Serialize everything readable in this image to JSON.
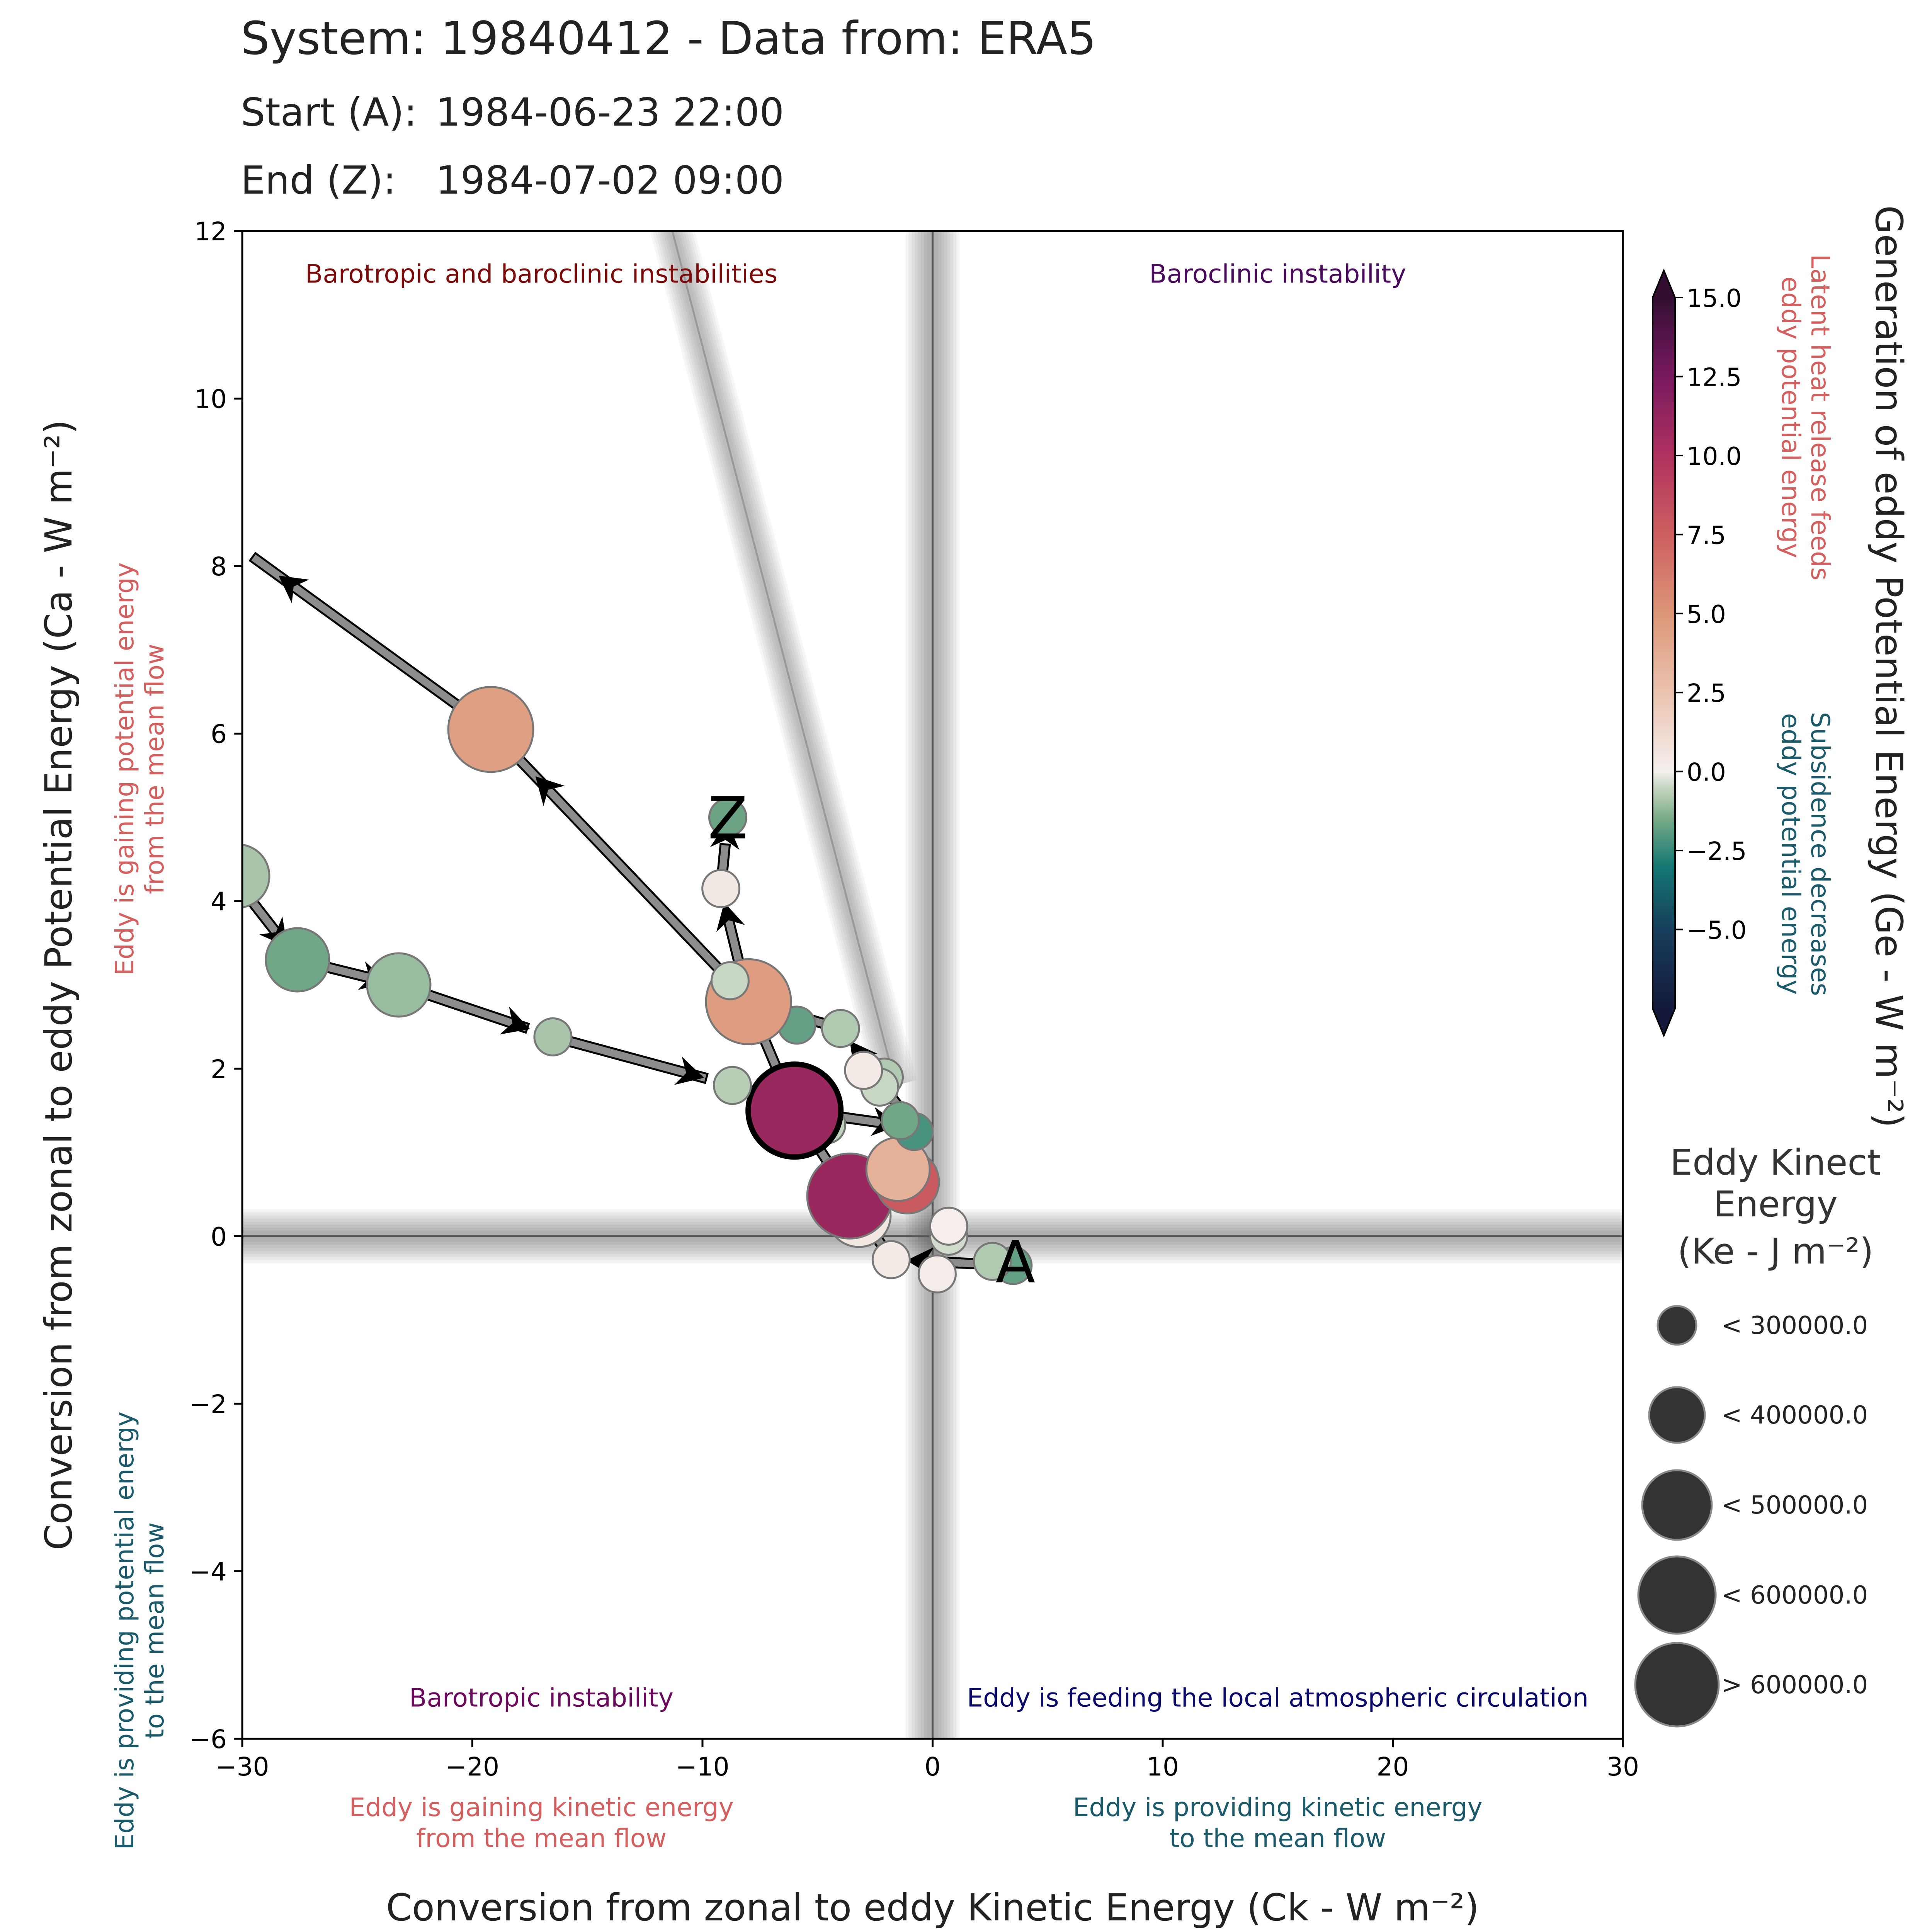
{
  "header": {
    "system_line": "System: 19840412 - Data from: ERA5",
    "start_label": "Start (A):",
    "start_value": "1984-06-23 22:00",
    "end_label": "End (Z):",
    "end_value": "1984-07-02 09:00"
  },
  "chart_data": {
    "type": "scatter",
    "xlabel": "Conversion from zonal to eddy Kinetic Energy (Ck -  W m⁻²)",
    "ylabel": "Conversion from zonal to eddy Potential Energy (Ca -  W m⁻²)",
    "xlim": [
      -30,
      30
    ],
    "ylim": [
      -6,
      12
    ],
    "xticks": [
      "−30",
      "−20",
      "−10",
      "0",
      "10",
      "20",
      "30"
    ],
    "xtick_values": [
      -30,
      -20,
      -10,
      0,
      10,
      20,
      30
    ],
    "yticks": [
      "−6",
      "−4",
      "−2",
      "0",
      "2",
      "4",
      "6",
      "8",
      "10",
      "12"
    ],
    "ytick_values": [
      -6,
      -4,
      -2,
      0,
      2,
      4,
      6,
      8,
      10,
      12
    ],
    "quadrant_labels": [
      {
        "text": "Barotropic and baroclinic instabilities",
        "x": -17,
        "y": 11.5,
        "color": "#7a0a0a"
      },
      {
        "text": "Baroclinic instability",
        "x": 15,
        "y": 11.5,
        "color": "#4a0a5c"
      },
      {
        "text": "Barotropic instability",
        "x": -17,
        "y": -5.5,
        "color": "#6b0a5c"
      },
      {
        "text": "Eddy is feeding the local atmospheric circulation",
        "x": 15,
        "y": -5.5,
        "color": "#0a0a6b"
      }
    ],
    "axis_side_labels": {
      "y_top": [
        "Eddy is gaining potential energy",
        "from the mean flow"
      ],
      "y_bottom": [
        "Eddy is providing potential energy",
        "to the mean flow"
      ],
      "x_left": [
        "Eddy is gaining kinetic energy",
        "from the mean flow"
      ],
      "x_right": [
        "Eddy is providing kinetic energy",
        "to the mean flow"
      ]
    },
    "colors": {
      "gain": "#d45f5f",
      "provide": "#1a5a6b",
      "axis": "#000000",
      "arrow_fill": "#8c8c8c"
    },
    "colorbar": {
      "label": "Generation of eddy Potential Energy (Ge -  W m⁻²)",
      "min": -7.5,
      "max": 15,
      "ticks": [
        "−5.0",
        "−2.5",
        "0.0",
        "2.5",
        "5.0",
        "7.5",
        "10.0",
        "12.5",
        "15.0"
      ],
      "tick_values": [
        -5,
        -2.5,
        0,
        2.5,
        5,
        7.5,
        10,
        12.5,
        15
      ],
      "upper_note": [
        "Latent heat release feeds",
        "eddy potential energy"
      ],
      "lower_note": [
        "Subsidence decreases",
        "eddy potential energy"
      ]
    },
    "size_legend": {
      "title": [
        "Eddy Kinect",
        "Energy",
        "(Ke -  J m⁻²)"
      ],
      "entries": [
        "< 300000.0",
        "< 400000.0",
        "< 500000.0",
        "< 600000.0",
        "> 600000.0"
      ]
    },
    "start_marker": "A",
    "end_marker": "Z",
    "points": [
      {
        "x": 3.5,
        "y": -0.35,
        "ge": -1.8,
        "size": 1
      },
      {
        "x": 2.6,
        "y": -0.3,
        "ge": -0.8,
        "size": 1
      },
      {
        "x": 0.2,
        "y": -0.45,
        "ge": 0.2,
        "size": 1
      },
      {
        "x": -1.8,
        "y": -0.28,
        "ge": 0.3,
        "size": 1
      },
      {
        "x": 0.7,
        "y": 0.0,
        "ge": -0.4,
        "size": 1
      },
      {
        "x": 0.7,
        "y": 0.12,
        "ge": 0.1,
        "size": 1
      },
      {
        "x": -3.2,
        "y": 0.25,
        "ge": 0.5,
        "size": 2
      },
      {
        "x": -3.6,
        "y": 0.48,
        "ge": 11.0,
        "size": 3
      },
      {
        "x": -1.1,
        "y": 0.65,
        "ge": 7.8,
        "size": 2
      },
      {
        "x": -1.5,
        "y": 0.8,
        "ge": 3.5,
        "size": 2
      },
      {
        "x": -0.8,
        "y": 1.25,
        "ge": -2.2,
        "size": 1
      },
      {
        "x": -1.4,
        "y": 1.38,
        "ge": -1.6,
        "size": 1
      },
      {
        "x": -4.6,
        "y": 1.33,
        "ge": -0.6,
        "size": 1
      },
      {
        "x": -6.0,
        "y": 1.5,
        "ge": 11.0,
        "size": 4,
        "highlight": true
      },
      {
        "x": -2.1,
        "y": 1.9,
        "ge": -0.8,
        "size": 1
      },
      {
        "x": -2.3,
        "y": 1.78,
        "ge": -0.5,
        "size": 1
      },
      {
        "x": -3.0,
        "y": 1.98,
        "ge": 0.3,
        "size": 1
      },
      {
        "x": -4.0,
        "y": 2.48,
        "ge": -0.8,
        "size": 1
      },
      {
        "x": -5.9,
        "y": 2.52,
        "ge": -1.8,
        "size": 1
      },
      {
        "x": -8.0,
        "y": 2.8,
        "ge": 4.6,
        "size": 3
      },
      {
        "x": -8.8,
        "y": 3.05,
        "ge": -0.5,
        "size": 1
      },
      {
        "x": -19.2,
        "y": 6.05,
        "ge": 4.5,
        "size": 3
      },
      {
        "x": -9.2,
        "y": 4.15,
        "ge": 0.4,
        "size": 1
      },
      {
        "x": -8.9,
        "y": 5.0,
        "ge": -1.7,
        "size": 1
      },
      {
        "x": -8.7,
        "y": 1.8,
        "ge": -0.7,
        "size": 1
      },
      {
        "x": -16.5,
        "y": 2.38,
        "ge": -0.9,
        "size": 1
      },
      {
        "x": -23.2,
        "y": 3.0,
        "ge": -1.1,
        "size": 2
      },
      {
        "x": -27.6,
        "y": 3.3,
        "ge": -1.6,
        "size": 2
      },
      {
        "x": -30.2,
        "y": 4.3,
        "ge": -0.9,
        "size": 2
      }
    ],
    "arrows": [
      {
        "from": [
          3.5,
          -0.35
        ],
        "to": [
          -1.8,
          -0.28
        ]
      },
      {
        "from": [
          -1.8,
          -0.28
        ],
        "to": [
          -3.6,
          0.48
        ]
      },
      {
        "from": [
          -3.6,
          0.48
        ],
        "to": [
          -6.0,
          1.5
        ]
      },
      {
        "from": [
          -6.0,
          1.5
        ],
        "to": [
          -0.8,
          1.3
        ]
      },
      {
        "from": [
          -0.8,
          1.3
        ],
        "to": [
          -4.0,
          2.48
        ]
      },
      {
        "from": [
          -4.0,
          2.48
        ],
        "to": [
          -8.0,
          2.8
        ]
      },
      {
        "from": [
          -8.8,
          3.05
        ],
        "to": [
          -19.2,
          6.05
        ]
      },
      {
        "from": [
          -19.2,
          6.05
        ],
        "to": [
          -30.5,
          8.3
        ]
      },
      {
        "from": [
          -9.2,
          4.15
        ],
        "to": [
          -8.9,
          5.0
        ]
      },
      {
        "from": [
          -8.0,
          2.8
        ],
        "to": [
          -9.2,
          4.15
        ]
      },
      {
        "from": [
          -31,
          4.5
        ],
        "to": [
          -27.6,
          3.3
        ]
      },
      {
        "from": [
          -27.6,
          3.3
        ],
        "to": [
          -23.2,
          3.0
        ]
      },
      {
        "from": [
          -23.2,
          3.0
        ],
        "to": [
          -16.5,
          2.38
        ]
      },
      {
        "from": [
          -16.5,
          2.38
        ],
        "to": [
          -8.7,
          1.8
        ]
      },
      {
        "from": [
          -8.7,
          1.8
        ],
        "to": [
          -6.0,
          1.5
        ]
      },
      {
        "from": [
          -6.0,
          1.5
        ],
        "to": [
          -8.0,
          2.8
        ]
      }
    ]
  }
}
